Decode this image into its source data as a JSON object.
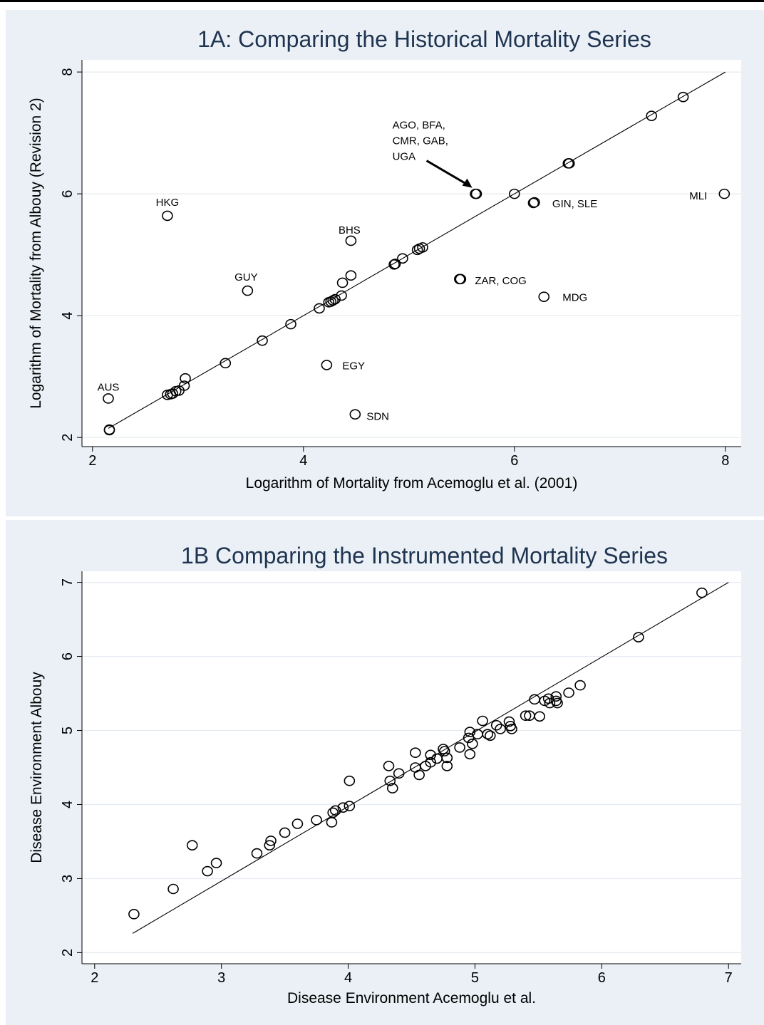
{
  "chart_data": [
    {
      "type": "scatter",
      "title": "1A: Comparing the Historical Mortality Series",
      "xlabel": "Logarithm of Mortality from Acemoglu et al. (2001)",
      "ylabel": "Logarithm of Mortality from Albouy (Revision 2)",
      "xlim": [
        1.9,
        8.15
      ],
      "ylim": [
        1.85,
        8.2
      ],
      "xticks": [
        2,
        4,
        6,
        8
      ],
      "yticks": [
        2,
        4,
        6,
        8
      ],
      "grid": "horizontal",
      "fit_line": {
        "x": [
          2.15,
          8.0
        ],
        "y": [
          2.15,
          8.0
        ]
      },
      "points": [
        [
          2.15,
          2.64
        ],
        [
          2.16,
          2.13
        ],
        [
          2.16,
          2.12
        ],
        [
          2.71,
          2.7
        ],
        [
          2.74,
          2.71
        ],
        [
          2.76,
          2.72
        ],
        [
          2.79,
          2.76
        ],
        [
          2.82,
          2.77
        ],
        [
          2.87,
          2.85
        ],
        [
          2.88,
          2.97
        ],
        [
          3.26,
          3.22
        ],
        [
          2.71,
          5.64
        ],
        [
          3.47,
          4.41
        ],
        [
          3.61,
          3.59
        ],
        [
          3.88,
          3.86
        ],
        [
          4.15,
          4.12
        ],
        [
          4.22,
          3.19
        ],
        [
          4.24,
          4.22
        ],
        [
          4.26,
          4.23
        ],
        [
          4.28,
          4.25
        ],
        [
          4.3,
          4.27
        ],
        [
          4.36,
          4.33
        ],
        [
          4.37,
          4.54
        ],
        [
          4.45,
          4.66
        ],
        [
          4.45,
          5.23
        ],
        [
          4.49,
          2.38
        ],
        [
          4.86,
          4.84
        ],
        [
          4.87,
          4.85
        ],
        [
          4.94,
          4.94
        ],
        [
          5.08,
          5.08
        ],
        [
          5.1,
          5.1
        ],
        [
          5.13,
          5.12
        ],
        [
          5.48,
          4.6
        ],
        [
          5.49,
          4.6
        ],
        [
          5.63,
          6.0
        ],
        [
          5.64,
          6.0
        ],
        [
          6.0,
          6.0
        ],
        [
          6.18,
          5.85
        ],
        [
          6.19,
          5.86
        ],
        [
          6.28,
          4.31
        ],
        [
          6.51,
          6.5
        ],
        [
          6.52,
          6.5
        ],
        [
          7.3,
          7.28
        ],
        [
          7.6,
          7.59
        ],
        [
          7.99,
          6.0
        ]
      ],
      "labels": [
        {
          "text": "AUS",
          "x": 2.15,
          "y": 2.64
        },
        {
          "text": "HKG",
          "x": 2.71,
          "y": 5.64
        },
        {
          "text": "GUY",
          "x": 3.47,
          "y": 4.41
        },
        {
          "text": "BHS",
          "x": 4.45,
          "y": 5.23
        },
        {
          "text": "EGY",
          "x": 4.22,
          "y": 3.19
        },
        {
          "text": "SDN",
          "x": 4.49,
          "y": 2.38
        },
        {
          "text": "ZAR, COG",
          "x": 5.49,
          "y": 4.6
        },
        {
          "text": "MDG",
          "x": 6.28,
          "y": 4.31
        },
        {
          "text": "GIN, SLE",
          "x": 6.19,
          "y": 5.86
        },
        {
          "text": "MLI",
          "x": 7.99,
          "y": 6.0
        }
      ],
      "annotation": {
        "lines": [
          "AGO, BFA,",
          "CMR, GAB,",
          "UGA"
        ],
        "target": {
          "x": 5.6,
          "y": 6.1
        }
      }
    },
    {
      "type": "scatter",
      "title": "1B Comparing the Instrumented Mortality Series",
      "xlabel": "Disease Environment Acemoglu et al.",
      "ylabel": "Disease Environment Albouy",
      "xlim": [
        1.9,
        7.1
      ],
      "ylim": [
        1.85,
        7.15
      ],
      "xticks": [
        2,
        3,
        4,
        5,
        6,
        7
      ],
      "yticks": [
        2,
        3,
        4,
        5,
        6,
        7
      ],
      "grid": "horizontal",
      "fit_line": {
        "x": [
          2.3,
          7.0
        ],
        "y": [
          2.26,
          7.0
        ]
      },
      "points": [
        [
          2.31,
          2.52
        ],
        [
          2.62,
          2.86
        ],
        [
          2.77,
          3.45
        ],
        [
          2.89,
          3.1
        ],
        [
          2.96,
          3.21
        ],
        [
          3.28,
          3.34
        ],
        [
          3.38,
          3.45
        ],
        [
          3.39,
          3.51
        ],
        [
          3.5,
          3.62
        ],
        [
          3.6,
          3.74
        ],
        [
          3.75,
          3.79
        ],
        [
          3.87,
          3.76
        ],
        [
          3.88,
          3.89
        ],
        [
          3.9,
          3.92
        ],
        [
          3.96,
          3.96
        ],
        [
          4.01,
          3.98
        ],
        [
          4.01,
          4.32
        ],
        [
          4.32,
          4.52
        ],
        [
          4.33,
          4.32
        ],
        [
          4.35,
          4.22
        ],
        [
          4.4,
          4.42
        ],
        [
          4.53,
          4.7
        ],
        [
          4.53,
          4.5
        ],
        [
          4.56,
          4.4
        ],
        [
          4.61,
          4.52
        ],
        [
          4.65,
          4.67
        ],
        [
          4.65,
          4.57
        ],
        [
          4.7,
          4.62
        ],
        [
          4.75,
          4.75
        ],
        [
          4.76,
          4.72
        ],
        [
          4.78,
          4.52
        ],
        [
          4.78,
          4.63
        ],
        [
          4.88,
          4.77
        ],
        [
          4.95,
          4.9
        ],
        [
          4.96,
          4.98
        ],
        [
          4.96,
          4.68
        ],
        [
          4.98,
          4.82
        ],
        [
          5.02,
          4.95
        ],
        [
          5.06,
          5.13
        ],
        [
          5.1,
          4.95
        ],
        [
          5.12,
          4.93
        ],
        [
          5.17,
          5.07
        ],
        [
          5.2,
          5.02
        ],
        [
          5.27,
          5.12
        ],
        [
          5.28,
          5.06
        ],
        [
          5.29,
          5.02
        ],
        [
          5.4,
          5.2
        ],
        [
          5.43,
          5.2
        ],
        [
          5.47,
          5.42
        ],
        [
          5.51,
          5.19
        ],
        [
          5.55,
          5.4
        ],
        [
          5.58,
          5.43
        ],
        [
          5.59,
          5.37
        ],
        [
          5.64,
          5.46
        ],
        [
          5.64,
          5.4
        ],
        [
          5.65,
          5.37
        ],
        [
          5.74,
          5.51
        ],
        [
          5.83,
          5.61
        ],
        [
          6.29,
          6.26
        ],
        [
          6.79,
          6.86
        ]
      ]
    }
  ]
}
